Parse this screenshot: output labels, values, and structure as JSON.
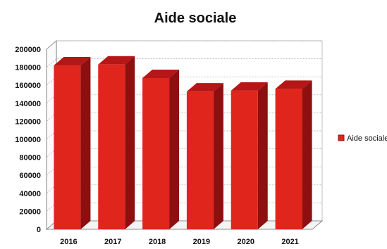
{
  "chart_data": {
    "type": "bar",
    "title": "Aide sociale",
    "categories": [
      "2016",
      "2017",
      "2018",
      "2019",
      "2020",
      "2021"
    ],
    "series": [
      {
        "name": "Aide sociale",
        "values": [
          182000,
          183000,
          168000,
          153000,
          154000,
          156000
        ],
        "color": "#e0251c"
      }
    ],
    "y_ticks": [
      "0",
      "20000",
      "40000",
      "60000",
      "80000",
      "100000",
      "120000",
      "140000",
      "160000",
      "180000",
      "200000"
    ],
    "ylim": [
      0,
      200000
    ],
    "grid": true,
    "legend_position": "right",
    "xlabel": "",
    "ylabel": ""
  }
}
